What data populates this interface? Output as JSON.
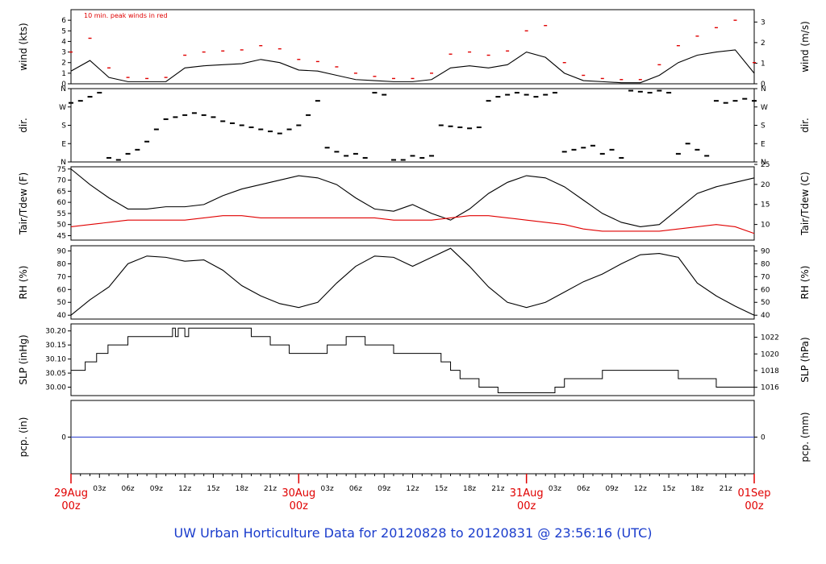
{
  "chart_data": {
    "type": "line",
    "footer_title": "UW Urban Horticulture Data for 20120828  to  20120831 @ 23:56:16  (UTC)",
    "x_axis": {
      "range_hours": [
        0,
        72
      ],
      "date_labels": [
        {
          "hour": 0,
          "date": "29Aug",
          "time": "00z"
        },
        {
          "hour": 24,
          "date": "30Aug",
          "time": "00z"
        },
        {
          "hour": 48,
          "date": "31Aug",
          "time": "00z"
        },
        {
          "hour": 72,
          "date": "01Sep",
          "time": "00z"
        }
      ],
      "hour_labels": [
        {
          "hour": 3,
          "label": "03z"
        },
        {
          "hour": 6,
          "label": "06z"
        },
        {
          "hour": 9,
          "label": "09z"
        },
        {
          "hour": 12,
          "label": "12z"
        },
        {
          "hour": 15,
          "label": "15z"
        },
        {
          "hour": 18,
          "label": "18z"
        },
        {
          "hour": 21,
          "label": "21z"
        },
        {
          "hour": 27,
          "label": "03z"
        },
        {
          "hour": 30,
          "label": "06z"
        },
        {
          "hour": 33,
          "label": "09z"
        },
        {
          "hour": 36,
          "label": "12z"
        },
        {
          "hour": 39,
          "label": "15z"
        },
        {
          "hour": 42,
          "label": "18z"
        },
        {
          "hour": 45,
          "label": "21z"
        },
        {
          "hour": 51,
          "label": "03z"
        },
        {
          "hour": 54,
          "label": "06z"
        },
        {
          "hour": 57,
          "label": "09z"
        },
        {
          "hour": 60,
          "label": "12z"
        },
        {
          "hour": 63,
          "label": "15z"
        },
        {
          "hour": 66,
          "label": "18z"
        },
        {
          "hour": 69,
          "label": "21z"
        }
      ]
    },
    "panels": [
      {
        "id": "wind",
        "ylabel_left": "wind (kts)",
        "ylabel_right": "wind (m/s)",
        "ylim": [
          0,
          7
        ],
        "right_ylim": [
          0,
          3.6
        ],
        "left_ticks": [
          "0",
          "1",
          "2",
          "3",
          "4",
          "5",
          "6"
        ],
        "left_tick_values": [
          0,
          1,
          2,
          3,
          4,
          5,
          6
        ],
        "right_ticks": [
          "0",
          "1",
          "2",
          "3"
        ],
        "right_tick_values": [
          0,
          1,
          2,
          3
        ],
        "annotation": "10 min. peak winds in red",
        "series": [
          {
            "role": "mean",
            "color": "#000000",
            "x": [
              0,
              2,
              4,
              6,
              8,
              10,
              12,
              14,
              16,
              18,
              20,
              22,
              24,
              26,
              28,
              30,
              32,
              34,
              36,
              38,
              40,
              42,
              44,
              46,
              48,
              50,
              52,
              54,
              56,
              58,
              60,
              62,
              64,
              66,
              68,
              70,
              72
            ],
            "y": [
              1.2,
              2.2,
              0.6,
              0.2,
              0.2,
              0.2,
              1.5,
              1.7,
              1.8,
              1.9,
              2.3,
              2.0,
              1.3,
              1.2,
              0.8,
              0.4,
              0.3,
              0.2,
              0.2,
              0.4,
              1.5,
              1.7,
              1.5,
              1.8,
              3.0,
              2.5,
              1.0,
              0.3,
              0.2,
              0.1,
              0.1,
              0.8,
              2.0,
              2.7,
              3.0,
              3.2,
              1.0
            ]
          },
          {
            "role": "peak",
            "color": "#e00000",
            "x": [
              0,
              2,
              4,
              6,
              8,
              10,
              12,
              14,
              16,
              18,
              20,
              22,
              24,
              26,
              28,
              30,
              32,
              34,
              36,
              38,
              40,
              42,
              44,
              46,
              48,
              50,
              52,
              54,
              56,
              58,
              60,
              62,
              64,
              66,
              68,
              70,
              72
            ],
            "y": [
              3.0,
              4.3,
              1.5,
              0.6,
              0.5,
              0.6,
              2.7,
              3.0,
              3.1,
              3.2,
              3.6,
              3.3,
              2.3,
              2.1,
              1.6,
              1.0,
              0.7,
              0.5,
              0.5,
              1.0,
              2.8,
              3.0,
              2.7,
              3.1,
              5.0,
              5.5,
              2.0,
              0.8,
              0.5,
              0.4,
              0.4,
              1.8,
              3.6,
              4.5,
              5.3,
              6.0,
              2.0
            ]
          }
        ]
      },
      {
        "id": "dir",
        "ylabel_left": "dir.",
        "ylabel_right": "dir.",
        "ylim": [
          0,
          360
        ],
        "left_ticks": [
          "N",
          "E",
          "S",
          "W",
          "N"
        ],
        "left_tick_values": [
          0,
          90,
          180,
          270,
          360
        ],
        "right_ticks": [
          "N",
          "E",
          "S",
          "W",
          "N"
        ],
        "right_tick_values": [
          0,
          90,
          180,
          270,
          360
        ],
        "series": [
          {
            "role": "direction",
            "color": "#000000",
            "x": [
              0,
              1,
              2,
              3,
              4,
              5,
              6,
              7,
              8,
              9,
              10,
              11,
              12,
              13,
              14,
              15,
              16,
              17,
              18,
              19,
              20,
              21,
              22,
              23,
              24,
              25,
              26,
              27,
              28,
              29,
              30,
              31,
              32,
              33,
              34,
              35,
              36,
              37,
              38,
              39,
              40,
              41,
              42,
              43,
              44,
              45,
              46,
              47,
              48,
              49,
              50,
              51,
              52,
              53,
              54,
              55,
              56,
              57,
              58,
              59,
              60,
              61,
              62,
              63,
              64,
              65,
              66,
              67,
              68,
              69,
              70,
              71,
              72
            ],
            "y": [
              290,
              300,
              320,
              340,
              20,
              10,
              40,
              60,
              100,
              160,
              210,
              220,
              230,
              240,
              230,
              220,
              200,
              190,
              180,
              170,
              160,
              150,
              140,
              160,
              180,
              230,
              300,
              70,
              50,
              30,
              40,
              20,
              340,
              330,
              10,
              10,
              30,
              20,
              30,
              180,
              175,
              170,
              165,
              170,
              300,
              320,
              330,
              340,
              330,
              320,
              330,
              340,
              50,
              60,
              70,
              80,
              40,
              60,
              20,
              350,
              345,
              340,
              350,
              340,
              40,
              90,
              60,
              30,
              300,
              290,
              300,
              310,
              300
            ]
          }
        ]
      },
      {
        "id": "temp",
        "ylabel_left": "Tair/Tdew (F)",
        "ylabel_right": "Tair/Tdew (C)",
        "ylim": [
          43,
          76
        ],
        "right_ylim": [
          6.1,
          24.4
        ],
        "left_ticks": [
          "45",
          "50",
          "55",
          "60",
          "65",
          "70",
          "75"
        ],
        "left_tick_values": [
          45,
          50,
          55,
          60,
          65,
          70,
          75
        ],
        "right_ticks": [
          "10",
          "15",
          "20",
          "25"
        ],
        "right_tick_values": [
          10,
          15,
          20,
          25
        ],
        "series": [
          {
            "role": "Tair",
            "color": "#000000",
            "x": [
              0,
              2,
              4,
              6,
              8,
              10,
              12,
              14,
              16,
              18,
              20,
              22,
              24,
              26,
              28,
              30,
              32,
              34,
              36,
              38,
              40,
              42,
              44,
              46,
              48,
              50,
              52,
              54,
              56,
              58,
              60,
              62,
              64,
              66,
              68,
              70,
              72
            ],
            "y": [
              75,
              68,
              62,
              57,
              57,
              58,
              58,
              59,
              63,
              66,
              68,
              70,
              72,
              71,
              68,
              62,
              57,
              56,
              59,
              55,
              52,
              57,
              64,
              69,
              72,
              71,
              67,
              61,
              55,
              51,
              49,
              50,
              57,
              64,
              67,
              69,
              71
            ]
          },
          {
            "role": "Tdew",
            "color": "#e00000",
            "x": [
              0,
              2,
              4,
              6,
              8,
              10,
              12,
              14,
              16,
              18,
              20,
              22,
              24,
              26,
              28,
              30,
              32,
              34,
              36,
              38,
              40,
              42,
              44,
              46,
              48,
              50,
              52,
              54,
              56,
              58,
              60,
              62,
              64,
              66,
              68,
              70,
              72
            ],
            "y": [
              49,
              50,
              51,
              52,
              52,
              52,
              52,
              53,
              54,
              54,
              53,
              53,
              53,
              53,
              53,
              53,
              53,
              52,
              52,
              52,
              53,
              54,
              54,
              53,
              52,
              51,
              50,
              48,
              47,
              47,
              47,
              47,
              48,
              49,
              50,
              49,
              46
            ]
          }
        ]
      },
      {
        "id": "rh",
        "ylabel_left": "RH (%)",
        "ylabel_right": "RH (%)",
        "ylim": [
          37,
          94
        ],
        "left_ticks": [
          "40",
          "50",
          "60",
          "70",
          "80",
          "90"
        ],
        "left_tick_values": [
          40,
          50,
          60,
          70,
          80,
          90
        ],
        "right_ticks": [
          "40",
          "50",
          "60",
          "70",
          "80",
          "90"
        ],
        "right_tick_values": [
          40,
          50,
          60,
          70,
          80,
          90
        ],
        "series": [
          {
            "role": "RH",
            "color": "#000000",
            "x": [
              0,
              2,
              4,
              6,
              8,
              10,
              12,
              14,
              16,
              18,
              20,
              22,
              24,
              26,
              28,
              30,
              32,
              34,
              36,
              38,
              40,
              42,
              44,
              46,
              48,
              50,
              52,
              54,
              56,
              58,
              60,
              62,
              64,
              66,
              68,
              70,
              72
            ],
            "y": [
              40,
              52,
              62,
              80,
              86,
              85,
              82,
              83,
              75,
              63,
              55,
              49,
              46,
              50,
              65,
              78,
              86,
              85,
              78,
              85,
              92,
              78,
              62,
              50,
              46,
              50,
              58,
              66,
              72,
              80,
              87,
              88,
              85,
              65,
              55,
              47,
              40
            ]
          }
        ]
      },
      {
        "id": "slp",
        "ylabel_left": "SLP (inHg)",
        "ylabel_right": "SLP (hPa)",
        "ylim": [
          29.97,
          30.225
        ],
        "right_ylim": [
          1015.0,
          1023.6
        ],
        "left_ticks": [
          "30.00",
          "30.05",
          "30.10",
          "30.15",
          "30.20"
        ],
        "left_tick_values": [
          30.0,
          30.05,
          30.1,
          30.15,
          30.2
        ],
        "right_ticks": [
          "1016",
          "1018",
          "1020",
          "1022"
        ],
        "right_tick_values": [
          1016,
          1018,
          1020,
          1022
        ],
        "series": [
          {
            "role": "SLP",
            "color": "#000000",
            "step": true,
            "x": [
              0,
              1.5,
              2.7,
              3.9,
              6,
              10.7,
              11,
              11.3,
              12,
              12.4,
              13,
              19,
              21,
              23,
              27,
              28,
              29,
              31,
              34,
              35,
              39,
              40,
              41,
              43,
              45,
              46,
              51,
              52,
              53,
              56,
              57,
              58,
              63,
              64,
              67,
              68,
              72
            ],
            "y": [
              30.06,
              30.09,
              30.12,
              30.15,
              30.18,
              30.21,
              30.18,
              30.21,
              30.18,
              30.21,
              30.21,
              30.18,
              30.15,
              30.12,
              30.15,
              30.15,
              30.18,
              30.15,
              30.12,
              30.12,
              30.09,
              30.06,
              30.03,
              30.0,
              29.98,
              29.98,
              30.0,
              30.03,
              30.03,
              30.06,
              30.06,
              30.06,
              30.06,
              30.03,
              30.03,
              30.0,
              30.0
            ]
          }
        ]
      },
      {
        "id": "pcp",
        "ylabel_left": "pcp. (in)",
        "ylabel_right": "pcp. (mm)",
        "ylim": [
          -1,
          1
        ],
        "left_ticks": [
          "0"
        ],
        "left_tick_values": [
          0
        ],
        "right_ticks": [
          "0"
        ],
        "right_tick_values": [
          0
        ],
        "series": [
          {
            "role": "precipitation",
            "color": "#2a3fcf",
            "x": [
              0,
              72
            ],
            "y": [
              0,
              0
            ]
          }
        ]
      }
    ]
  }
}
